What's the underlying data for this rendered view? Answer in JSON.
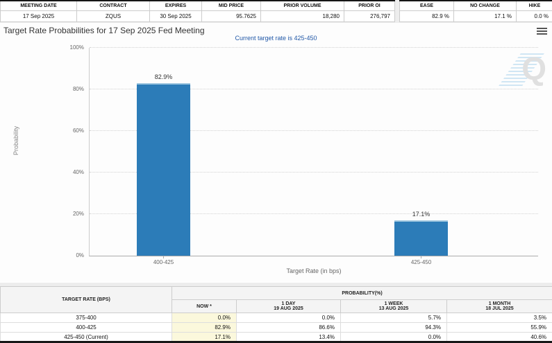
{
  "top": {
    "contract": {
      "headers": [
        "MEETING DATE",
        "CONTRACT",
        "EXPIRES",
        "MID PRICE",
        "PRIOR VOLUME",
        "PRIOR OI"
      ],
      "values": [
        "17 Sep 2025",
        "ZQUS",
        "30 Sep 2025",
        "95.7625",
        "18,280",
        "276,797"
      ]
    },
    "rates": {
      "headers": [
        "EASE",
        "NO CHANGE",
        "HIKE"
      ],
      "values": [
        "82.9 %",
        "17.1 %",
        "0.0 %"
      ]
    }
  },
  "chart": {
    "title": "Target Rate Probabilities for 17 Sep 2025 Fed Meeting",
    "subtitle": "Current target rate is 425-450",
    "watermark": "Q"
  },
  "chart_data": {
    "type": "bar",
    "title": "Target Rate Probabilities for 17 Sep 2025 Fed Meeting",
    "subtitle": "Current target rate is 425-450",
    "categories": [
      "400-425",
      "425-450"
    ],
    "values": [
      82.9,
      17.1
    ],
    "labels": [
      "82.9%",
      "17.1%"
    ],
    "xlabel": "Target Rate (in bps)",
    "ylabel": "Probability",
    "ylim": [
      0,
      100
    ],
    "yticks": [
      "0%",
      "20%",
      "40%",
      "60%",
      "80%",
      "100%"
    ],
    "grid": "dotted horizontal",
    "bar_color": "#2c7cb8"
  },
  "bottom_table": {
    "rate_header": "TARGET RATE (BPS)",
    "group_header": "PROBABILITY(%)",
    "columns": [
      {
        "label": "NOW *",
        "date": ""
      },
      {
        "label": "1 DAY",
        "date": "19 AUG 2025"
      },
      {
        "label": "1 WEEK",
        "date": "13 AUG 2025"
      },
      {
        "label": "1 MONTH",
        "date": "18 JUL 2025"
      }
    ],
    "rows": [
      {
        "rate": "375-400",
        "cells": [
          "0.0%",
          "0.0%",
          "5.7%",
          "3.5%"
        ]
      },
      {
        "rate": "400-425",
        "cells": [
          "82.9%",
          "86.6%",
          "94.3%",
          "55.9%"
        ]
      },
      {
        "rate": "425-450 (Current)",
        "cells": [
          "17.1%",
          "13.4%",
          "0.0%",
          "40.6%"
        ]
      }
    ]
  },
  "colors": {
    "bar": "#2c7cb8",
    "subtitle_blue": "#2057a7",
    "now_highlight": "#fbf8dc",
    "header_bg": "#f4f4f4",
    "dark_strip": "#161616"
  }
}
